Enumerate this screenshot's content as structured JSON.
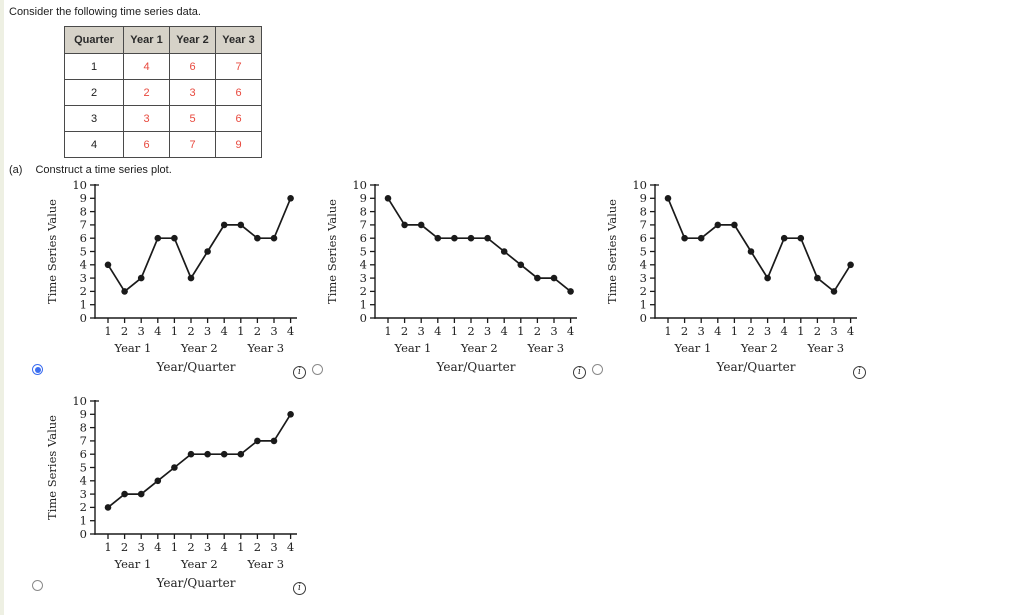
{
  "page": {
    "intro": "Consider the following time series data.",
    "part_label": "(a)",
    "part_text": "Construct a time series plot."
  },
  "colors": {
    "table_value_red": "#e8493e",
    "table_header_bg": "#d6d2c8",
    "radio_selected_blue": "#3c6ef0",
    "chart_ink": "#1a1a1a"
  },
  "table": {
    "headers": [
      "Quarter",
      "Year 1",
      "Year 2",
      "Year 3"
    ],
    "rows": [
      {
        "quarter": "1",
        "values": [
          "4",
          "6",
          "7"
        ]
      },
      {
        "quarter": "2",
        "values": [
          "2",
          "3",
          "6"
        ]
      },
      {
        "quarter": "3",
        "values": [
          "3",
          "5",
          "6"
        ]
      },
      {
        "quarter": "4",
        "values": [
          "6",
          "7",
          "9"
        ]
      }
    ]
  },
  "info_icon": {
    "glyph": "i"
  },
  "chart_data": [
    {
      "type": "line",
      "option": "A",
      "selected": true,
      "values": [
        4,
        2,
        3,
        6,
        6,
        3,
        5,
        7,
        7,
        6,
        6,
        9
      ],
      "x_tick_labels": [
        "1",
        "2",
        "3",
        "4",
        "1",
        "2",
        "3",
        "4",
        "1",
        "2",
        "3",
        "4"
      ],
      "year_labels": [
        "Year 1",
        "Year 2",
        "Year 3"
      ],
      "yticks": [
        "0",
        "1",
        "2",
        "3",
        "4",
        "5",
        "6",
        "7",
        "8",
        "9",
        "10"
      ],
      "ylim": [
        0,
        10
      ],
      "ylabel": "Time Series Value",
      "xlabel": "Year/Quarter",
      "grid": false,
      "legend": "none"
    },
    {
      "type": "line",
      "option": "B",
      "selected": false,
      "values": [
        9,
        7,
        7,
        6,
        6,
        6,
        6,
        5,
        4,
        3,
        3,
        2
      ],
      "x_tick_labels": [
        "1",
        "2",
        "3",
        "4",
        "1",
        "2",
        "3",
        "4",
        "1",
        "2",
        "3",
        "4"
      ],
      "year_labels": [
        "Year 1",
        "Year 2",
        "Year 3"
      ],
      "yticks": [
        "0",
        "1",
        "2",
        "3",
        "4",
        "5",
        "6",
        "7",
        "8",
        "9",
        "10"
      ],
      "ylim": [
        0,
        10
      ],
      "ylabel": "Time Series Value",
      "xlabel": "Year/Quarter",
      "grid": false,
      "legend": "none"
    },
    {
      "type": "line",
      "option": "C",
      "selected": false,
      "values": [
        9,
        6,
        6,
        7,
        7,
        5,
        3,
        6,
        6,
        3,
        2,
        4
      ],
      "x_tick_labels": [
        "1",
        "2",
        "3",
        "4",
        "1",
        "2",
        "3",
        "4",
        "1",
        "2",
        "3",
        "4"
      ],
      "year_labels": [
        "Year 1",
        "Year 2",
        "Year 3"
      ],
      "yticks": [
        "0",
        "1",
        "2",
        "3",
        "4",
        "5",
        "6",
        "7",
        "8",
        "9",
        "10"
      ],
      "ylim": [
        0,
        10
      ],
      "ylabel": "Time Series Value",
      "xlabel": "Year/Quarter",
      "grid": false,
      "legend": "none"
    },
    {
      "type": "line",
      "option": "D",
      "selected": false,
      "values": [
        2,
        3,
        3,
        4,
        5,
        6,
        6,
        6,
        6,
        7,
        7,
        9
      ],
      "x_tick_labels": [
        "1",
        "2",
        "3",
        "4",
        "1",
        "2",
        "3",
        "4",
        "1",
        "2",
        "3",
        "4"
      ],
      "year_labels": [
        "Year 1",
        "Year 2",
        "Year 3"
      ],
      "yticks": [
        "0",
        "1",
        "2",
        "3",
        "4",
        "5",
        "6",
        "7",
        "8",
        "9",
        "10"
      ],
      "ylim": [
        0,
        10
      ],
      "ylabel": "Time Series Value",
      "xlabel": "Year/Quarter",
      "grid": false,
      "legend": "none"
    }
  ]
}
